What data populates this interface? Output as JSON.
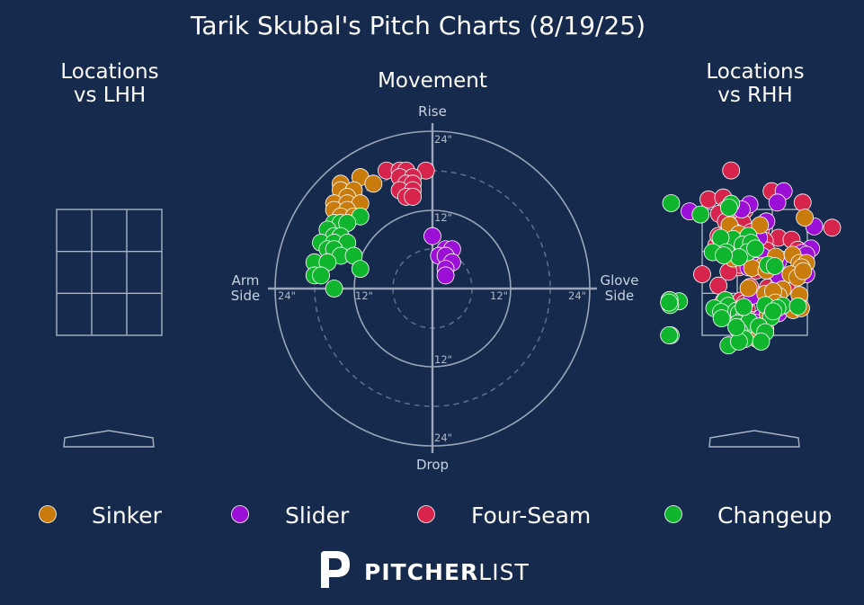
{
  "title": "Tarik Skubal's Pitch Charts (8/19/25)",
  "panels": {
    "lhh": "Locations\nvs LHH",
    "movement": "Movement",
    "rhh": "Locations\nvs RHH"
  },
  "movement_axes": {
    "top": "Rise",
    "bottom": "Drop",
    "left": "Arm\nSide",
    "right": "Glove\nSide"
  },
  "ring_labels": [
    "12\"",
    "24\""
  ],
  "brand": {
    "bold": "PITCHER",
    "light": "LIST"
  },
  "colors": {
    "background": "#152a4c",
    "Sinker": "#c97b0c",
    "Slider": "#9b0fd6",
    "Four-Seam": "#d6244c",
    "Changeup": "#0fb52d"
  },
  "legend": [
    "Sinker",
    "Slider",
    "Four-Seam",
    "Changeup"
  ],
  "chart_data": [
    {
      "type": "scatter",
      "title": "Movement",
      "xlabel": "Arm Side / Glove Side",
      "ylabel": "Drop / Rise",
      "units": "inches",
      "xlim": [
        -24,
        24
      ],
      "ylim": [
        -24,
        24
      ],
      "series": [
        {
          "name": "Four-Seam",
          "points": [
            [
              -7,
              18
            ],
            [
              -5,
              18
            ],
            [
              -4,
              18
            ],
            [
              -1,
              18
            ],
            [
              -5,
              17
            ],
            [
              -3,
              17
            ],
            [
              -4,
              16
            ],
            [
              -3,
              16
            ],
            [
              -5,
              15
            ],
            [
              -3,
              15
            ],
            [
              -4,
              14
            ],
            [
              -3,
              14
            ]
          ]
        },
        {
          "name": "Sinker",
          "points": [
            [
              -14,
              16
            ],
            [
              -11,
              17
            ],
            [
              -9,
              16
            ],
            [
              -14,
              15
            ],
            [
              -12,
              15
            ],
            [
              -13,
              14
            ],
            [
              -15,
              13
            ],
            [
              -13,
              13
            ],
            [
              -11,
              13
            ],
            [
              -15,
              12
            ],
            [
              -13,
              12
            ],
            [
              -14,
              11
            ],
            [
              -12,
              11
            ]
          ]
        },
        {
          "name": "Changeup",
          "points": [
            [
              -11,
              11
            ],
            [
              -15,
              10
            ],
            [
              -14,
              10
            ],
            [
              -13,
              10
            ],
            [
              -16,
              9
            ],
            [
              -15,
              8
            ],
            [
              -14,
              8
            ],
            [
              -17,
              7
            ],
            [
              -15,
              7
            ],
            [
              -13,
              7
            ],
            [
              -16,
              6
            ],
            [
              -15,
              6
            ],
            [
              -14,
              5
            ],
            [
              -12,
              5
            ],
            [
              -18,
              4
            ],
            [
              -16,
              4
            ],
            [
              -11,
              3
            ],
            [
              -18,
              2
            ],
            [
              -17,
              2
            ],
            [
              -15,
              0
            ]
          ]
        },
        {
          "name": "Slider",
          "points": [
            [
              0,
              8
            ],
            [
              2,
              6
            ],
            [
              3,
              6
            ],
            [
              1,
              5
            ],
            [
              2,
              5
            ],
            [
              3,
              4
            ],
            [
              2,
              3
            ],
            [
              2,
              2
            ]
          ]
        }
      ]
    },
    {
      "type": "scatter",
      "title": "Locations vs LHH",
      "series": [
        {
          "name": "Sinker",
          "points": []
        },
        {
          "name": "Slider",
          "points": []
        },
        {
          "name": "Four-Seam",
          "points": []
        },
        {
          "name": "Changeup",
          "points": []
        }
      ]
    },
    {
      "type": "scatter",
      "title": "Locations vs RHH",
      "note": "positions relative to strike zone: x -1 (left edge) to 1 (right edge), y 1 (top) to -1 (bottom)",
      "series": [
        {
          "name": "Four-Seam",
          "points": [
            [
              -0.45,
              1.62
            ],
            [
              0.32,
              1.29
            ],
            [
              0.91,
              1.11
            ],
            [
              -0.88,
              1.16
            ],
            [
              -0.6,
              1.19
            ],
            [
              -0.55,
              1.0
            ],
            [
              -0.68,
              0.93
            ],
            [
              -0.25,
              0.95
            ],
            [
              -0.19,
              0.99
            ],
            [
              -0.55,
              0.81
            ],
            [
              -0.4,
              0.71
            ],
            [
              -0.23,
              0.79
            ],
            [
              -0.07,
              0.64
            ],
            [
              0.12,
              0.69
            ],
            [
              -0.38,
              0.64
            ],
            [
              -0.53,
              0.56
            ],
            [
              -0.73,
              0.43
            ],
            [
              -0.69,
              0.58
            ],
            [
              0.13,
              0.48
            ],
            [
              0.45,
              0.55
            ],
            [
              0.19,
              0.5
            ],
            [
              -0.25,
              0.55
            ],
            [
              -0.43,
              0.48
            ],
            [
              -0.58,
              0.52
            ],
            [
              -0.55,
              0.35
            ],
            [
              -0.4,
              0.38
            ],
            [
              -0.13,
              0.28
            ],
            [
              0.22,
              0.35
            ],
            [
              0.7,
              0.52
            ],
            [
              0.82,
              0.36
            ],
            [
              0.9,
              0.27
            ],
            [
              -0.33,
              0.17
            ],
            [
              -0.3,
              0.08
            ],
            [
              0.03,
              0.03
            ],
            [
              -1.0,
              -0.03
            ],
            [
              -0.27,
              0.12
            ],
            [
              -0.5,
              0.01
            ],
            [
              0.25,
              -0.24
            ],
            [
              0.45,
              -0.21
            ],
            [
              -0.09,
              -0.23
            ],
            [
              0.6,
              -0.22
            ],
            [
              -0.69,
              -0.21
            ],
            [
              -0.6,
              -0.47
            ],
            [
              -0.27,
              -0.45
            ],
            [
              -0.15,
              -0.58
            ],
            [
              -0.19,
              -0.49
            ],
            [
              -0.05,
              -0.76
            ],
            [
              0.01,
              -0.99
            ],
            [
              0.2,
              -0.9
            ],
            [
              1.47,
              0.71
            ]
          ]
        },
        {
          "name": "Slider",
          "points": [
            [
              -2.44,
              1.61
            ],
            [
              0.55,
              1.29
            ],
            [
              0.43,
              1.11
            ],
            [
              -0.1,
              1.08
            ],
            [
              -0.25,
              1.0
            ],
            [
              -1.24,
              0.97
            ],
            [
              -0.5,
              0.66
            ],
            [
              1.13,
              0.73
            ],
            [
              1.07,
              0.38
            ],
            [
              0.9,
              0.31
            ],
            [
              -0.12,
              0.08
            ],
            [
              0.45,
              0.18
            ],
            [
              0.98,
              0.28
            ],
            [
              0.14,
              0.26
            ],
            [
              0.45,
              -0.05
            ],
            [
              0.98,
              -0.03
            ],
            [
              -0.14,
              0.51
            ],
            [
              0.22,
              0.81
            ],
            [
              0.08,
              0.55
            ],
            [
              0.04,
              0.1
            ],
            [
              -0.05,
              -0.37
            ],
            [
              0.12,
              -0.72
            ],
            [
              0.45,
              -0.65
            ],
            [
              0.01,
              -0.8
            ]
          ]
        },
        {
          "name": "Sinker",
          "points": [
            [
              0.95,
              0.87
            ],
            [
              -0.48,
              0.75
            ],
            [
              -0.3,
              0.61
            ],
            [
              0.1,
              0.75
            ],
            [
              -0.41,
              0.22
            ],
            [
              0.4,
              0.25
            ],
            [
              0.15,
              0.1
            ],
            [
              -0.05,
              0.07
            ],
            [
              0.72,
              0.28
            ],
            [
              0.85,
              0.15
            ],
            [
              0.22,
              0.03
            ],
            [
              0.98,
              0.15
            ],
            [
              0.89,
              0.08
            ],
            [
              0.68,
              -0.03
            ],
            [
              0.81,
              -0.08
            ],
            [
              0.92,
              0.02
            ],
            [
              0.53,
              -0.27
            ],
            [
              0.2,
              -0.34
            ],
            [
              0.45,
              -0.37
            ],
            [
              0.85,
              -0.36
            ],
            [
              0.35,
              -0.3
            ],
            [
              -0.12,
              -0.25
            ],
            [
              0.39,
              -0.48
            ],
            [
              0.73,
              -0.6
            ],
            [
              0.88,
              -0.57
            ],
            [
              0.25,
              -0.67
            ],
            [
              0.05,
              -1.06
            ]
          ]
        },
        {
          "name": "Changeup",
          "points": [
            [
              -1.59,
              1.1
            ],
            [
              -0.45,
              1.09
            ],
            [
              -0.49,
              1.03
            ],
            [
              -1.03,
              0.92
            ],
            [
              -0.41,
              0.53
            ],
            [
              -0.12,
              0.58
            ],
            [
              -0.23,
              0.44
            ],
            [
              -0.07,
              0.47
            ],
            [
              -0.65,
              0.55
            ],
            [
              -0.54,
              0.32
            ],
            [
              -0.14,
              0.32
            ],
            [
              0.01,
              0.38
            ],
            [
              -0.8,
              0.32
            ],
            [
              -0.3,
              0.24
            ],
            [
              -0.59,
              0.27
            ],
            [
              0.25,
              0.12
            ],
            [
              0.38,
              0.1
            ],
            [
              -0.56,
              -0.44
            ],
            [
              0.53,
              -0.53
            ],
            [
              0.82,
              -0.54
            ],
            [
              0.2,
              -0.52
            ],
            [
              0.43,
              -0.57
            ],
            [
              0.31,
              -0.71
            ],
            [
              -0.5,
              -0.53
            ],
            [
              -0.77,
              -0.57
            ],
            [
              -0.64,
              -0.63
            ],
            [
              -0.35,
              -0.61
            ],
            [
              -0.25,
              -0.62
            ],
            [
              -0.3,
              -0.65
            ],
            [
              -0.2,
              -0.7
            ],
            [
              -1.61,
              -0.46
            ],
            [
              -0.63,
              -0.73
            ],
            [
              -0.32,
              -0.81
            ],
            [
              -0.15,
              -0.83
            ],
            [
              -0.1,
              -0.78
            ],
            [
              0.08,
              -0.86
            ],
            [
              -0.3,
              -0.93
            ],
            [
              0.2,
              -0.95
            ],
            [
              -0.19,
              -1.06
            ],
            [
              -0.5,
              -1.16
            ],
            [
              -0.3,
              -1.1
            ],
            [
              -1.6,
              -1.0
            ],
            [
              -1.44,
              -0.46
            ],
            [
              -1.62,
              -0.44
            ],
            [
              -1.61,
              -0.52
            ],
            [
              -1.63,
              -0.48
            ],
            [
              -1.63,
              -1.0
            ],
            [
              0.12,
              -1.1
            ],
            [
              -0.21,
              -0.55
            ],
            [
              0.35,
              -0.62
            ],
            [
              -0.35,
              -0.87
            ]
          ]
        }
      ]
    }
  ]
}
